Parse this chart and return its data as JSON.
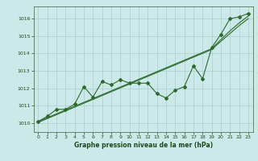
{
  "x_data": [
    0,
    1,
    2,
    3,
    4,
    5,
    6,
    7,
    8,
    9,
    10,
    11,
    12,
    13,
    14,
    15,
    16,
    17,
    18,
    19,
    20,
    21,
    22,
    23
  ],
  "y_main": [
    1010.1,
    1010.4,
    1010.8,
    1010.8,
    1011.1,
    1012.1,
    1011.5,
    1012.4,
    1012.2,
    1012.5,
    1012.3,
    1012.3,
    1012.3,
    1011.7,
    1011.45,
    1011.9,
    1012.1,
    1013.3,
    1012.55,
    1014.35,
    1015.1,
    1016.0,
    1016.1,
    1016.3
  ],
  "y_trend1": [
    1010.1,
    1010.32,
    1010.54,
    1010.76,
    1010.98,
    1011.2,
    1011.42,
    1011.64,
    1011.86,
    1012.08,
    1012.3,
    1012.52,
    1012.74,
    1012.96,
    1013.18,
    1013.4,
    1013.62,
    1013.84,
    1014.06,
    1014.28,
    1014.8,
    1015.3,
    1015.75,
    1016.15
  ],
  "y_trend2": [
    1010.05,
    1010.27,
    1010.49,
    1010.71,
    1010.93,
    1011.15,
    1011.37,
    1011.59,
    1011.81,
    1012.03,
    1012.25,
    1012.47,
    1012.69,
    1012.91,
    1013.13,
    1013.35,
    1013.57,
    1013.79,
    1014.01,
    1014.23,
    1014.7,
    1015.15,
    1015.6,
    1016.0
  ],
  "xlabel": "Graphe pression niveau de la mer (hPa)",
  "ylim_min": 1009.5,
  "ylim_max": 1016.7,
  "xlim_min": -0.5,
  "xlim_max": 23.5,
  "yticks": [
    1010,
    1011,
    1012,
    1013,
    1014,
    1015,
    1016
  ],
  "xticks": [
    0,
    1,
    2,
    3,
    4,
    5,
    6,
    7,
    8,
    9,
    10,
    11,
    12,
    13,
    14,
    15,
    16,
    17,
    18,
    19,
    20,
    21,
    22,
    23
  ],
  "line_color": "#2d6a2d",
  "bg_color": "#cce9e9",
  "grid_color": "#aacfcf",
  "text_color": "#1a4a1a"
}
